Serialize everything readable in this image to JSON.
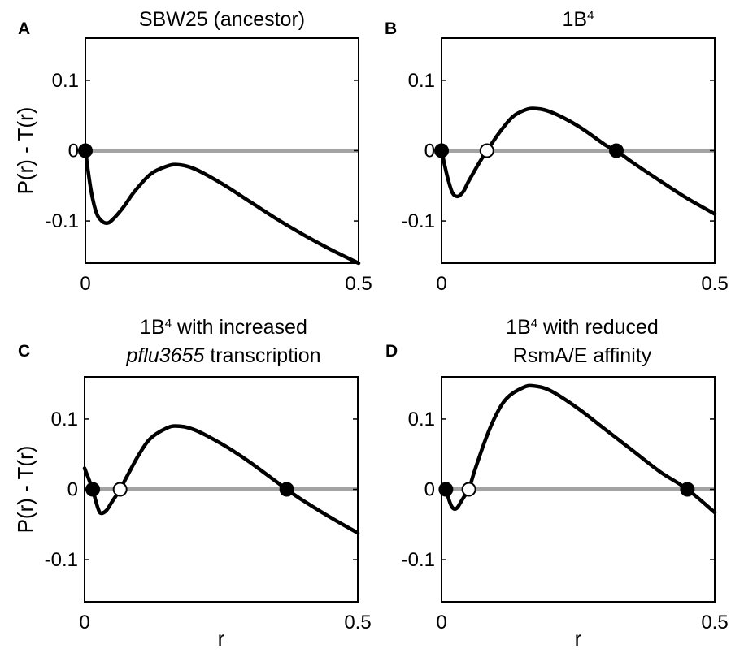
{
  "chart_data": [
    {
      "panel": "A",
      "type": "line",
      "title": "SBW25 (ancestor)",
      "title_parts": [
        [
          {
            "t": "SBW25 (ancestor)"
          }
        ]
      ],
      "xlabel": "",
      "ylabel": "P(r) - T(r)",
      "xlim": [
        0,
        0.5
      ],
      "ylim": [
        -0.16,
        0.16
      ],
      "xticks": [
        {
          "v": 0,
          "label": "0"
        },
        {
          "v": 0.5,
          "label": "0.5"
        }
      ],
      "yticks": [
        {
          "v": 0.1,
          "label": "0.1"
        },
        {
          "v": 0,
          "label": "0"
        },
        {
          "v": -0.1,
          "label": "-0.1"
        }
      ],
      "zero_line_color": "#a3a3a3",
      "curve": {
        "x": [
          0,
          0.01,
          0.02,
          0.03,
          0.04,
          0.05,
          0.07,
          0.09,
          0.12,
          0.15,
          0.17,
          0.2,
          0.25,
          0.3,
          0.35,
          0.4,
          0.45,
          0.5
        ],
        "y": [
          0,
          -0.055,
          -0.088,
          -0.1,
          -0.103,
          -0.098,
          -0.08,
          -0.058,
          -0.033,
          -0.022,
          -0.02,
          -0.026,
          -0.047,
          -0.072,
          -0.097,
          -0.12,
          -0.141,
          -0.16
        ]
      },
      "fixed_points": [
        {
          "x": 0,
          "y": 0,
          "kind": "stable"
        }
      ]
    },
    {
      "panel": "B",
      "type": "line",
      "title": "1B4",
      "title_parts": [
        [
          {
            "t": "1B"
          },
          {
            "t": "4",
            "sup": true
          }
        ]
      ],
      "xlabel": "",
      "ylabel": "",
      "xlim": [
        0,
        0.5
      ],
      "ylim": [
        -0.16,
        0.16
      ],
      "xticks": [
        {
          "v": 0,
          "label": "0"
        },
        {
          "v": 0.5,
          "label": "0.5"
        }
      ],
      "yticks": [
        {
          "v": 0.1,
          "label": "0.1"
        },
        {
          "v": 0,
          "label": "0"
        },
        {
          "v": -0.1,
          "label": "-0.1"
        }
      ],
      "zero_line_color": "#a3a3a3",
      "curve": {
        "x": [
          0,
          0.01,
          0.02,
          0.03,
          0.04,
          0.05,
          0.07,
          0.09,
          0.11,
          0.13,
          0.15,
          0.17,
          0.2,
          0.25,
          0.3,
          0.32,
          0.35,
          0.4,
          0.45,
          0.5
        ],
        "y": [
          0,
          -0.035,
          -0.06,
          -0.065,
          -0.058,
          -0.043,
          -0.016,
          0.008,
          0.03,
          0.048,
          0.057,
          0.06,
          0.055,
          0.035,
          0.008,
          0,
          -0.017,
          -0.043,
          -0.068,
          -0.09
        ]
      },
      "fixed_points": [
        {
          "x": 0,
          "y": 0,
          "kind": "stable"
        },
        {
          "x": 0.083,
          "y": 0,
          "kind": "unstable"
        },
        {
          "x": 0.32,
          "y": 0,
          "kind": "stable"
        }
      ]
    },
    {
      "panel": "C",
      "type": "line",
      "title": "1B4 with increased pflu3655 transcription",
      "title_parts": [
        [
          {
            "t": "1B"
          },
          {
            "t": "4",
            "sup": true
          },
          {
            "t": " with increased"
          }
        ],
        [
          {
            "t": "pflu3655",
            "italic": true
          },
          {
            "t": " transcription"
          }
        ]
      ],
      "xlabel": "r",
      "ylabel": "P(r) - T(r)",
      "xlim": [
        0,
        0.5
      ],
      "ylim": [
        -0.16,
        0.16
      ],
      "xticks": [
        {
          "v": 0,
          "label": "0"
        },
        {
          "v": 0.5,
          "label": "0.5"
        }
      ],
      "yticks": [
        {
          "v": 0.1,
          "label": "0.1"
        },
        {
          "v": 0,
          "label": "0"
        },
        {
          "v": -0.1,
          "label": "-0.1"
        }
      ],
      "zero_line_color": "#a3a3a3",
      "curve": {
        "x": [
          0,
          0.005,
          0.01,
          0.015,
          0.02,
          0.025,
          0.03,
          0.04,
          0.05,
          0.065,
          0.08,
          0.1,
          0.12,
          0.15,
          0.17,
          0.2,
          0.25,
          0.3,
          0.37,
          0.4,
          0.45,
          0.5
        ],
        "y": [
          0.03,
          0.02,
          0.01,
          0,
          -0.015,
          -0.028,
          -0.034,
          -0.03,
          -0.018,
          0,
          0.022,
          0.05,
          0.072,
          0.087,
          0.09,
          0.085,
          0.065,
          0.04,
          0,
          -0.016,
          -0.04,
          -0.062
        ]
      },
      "fixed_points": [
        {
          "x": 0.015,
          "y": 0,
          "kind": "stable"
        },
        {
          "x": 0.065,
          "y": 0,
          "kind": "unstable"
        },
        {
          "x": 0.37,
          "y": 0,
          "kind": "stable"
        }
      ]
    },
    {
      "panel": "D",
      "type": "line",
      "title": "1B4 with reduced RsmA/E affinity",
      "title_parts": [
        [
          {
            "t": "1B"
          },
          {
            "t": "4",
            "sup": true
          },
          {
            "t": " with reduced"
          }
        ],
        [
          {
            "t": "RsmA/E affinity"
          }
        ]
      ],
      "xlabel": "r",
      "ylabel": "",
      "xlim": [
        0,
        0.5
      ],
      "ylim": [
        -0.16,
        0.16
      ],
      "xticks": [
        {
          "v": 0,
          "label": "0"
        },
        {
          "v": 0.5,
          "label": "0.5"
        }
      ],
      "yticks": [
        {
          "v": 0.1,
          "label": "0.1"
        },
        {
          "v": 0,
          "label": "0"
        },
        {
          "v": -0.1,
          "label": "-0.1"
        }
      ],
      "zero_line_color": "#a3a3a3",
      "curve": {
        "x": [
          0.008,
          0.015,
          0.02,
          0.025,
          0.03,
          0.04,
          0.05,
          0.06,
          0.08,
          0.1,
          0.12,
          0.15,
          0.17,
          0.2,
          0.25,
          0.3,
          0.35,
          0.4,
          0.45,
          0.5
        ],
        "y": [
          0,
          -0.018,
          -0.026,
          -0.028,
          -0.025,
          -0.012,
          0,
          0.025,
          0.07,
          0.106,
          0.13,
          0.145,
          0.147,
          0.14,
          0.115,
          0.085,
          0.055,
          0.025,
          0,
          -0.033
        ]
      },
      "fixed_points": [
        {
          "x": 0.008,
          "y": 0,
          "kind": "stable"
        },
        {
          "x": 0.05,
          "y": 0,
          "kind": "unstable"
        },
        {
          "x": 0.45,
          "y": 0,
          "kind": "stable"
        }
      ]
    }
  ]
}
